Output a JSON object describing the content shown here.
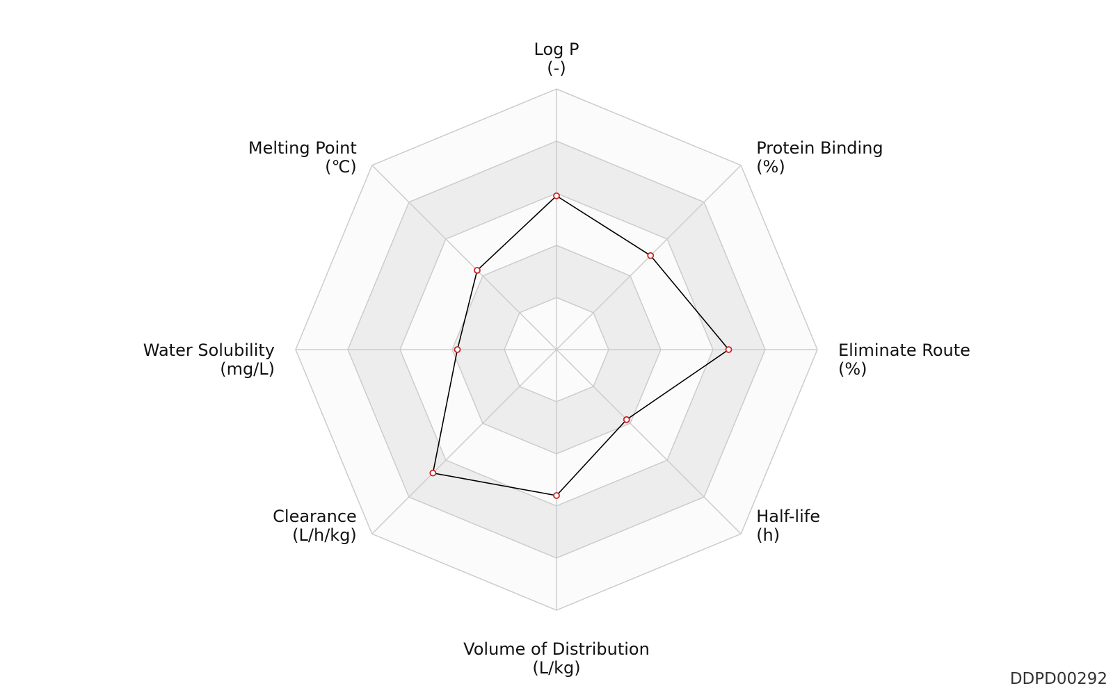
{
  "chart_data": {
    "type": "radar",
    "axes": [
      {
        "name": "Log P",
        "unit": "(-)"
      },
      {
        "name": "Protein Binding",
        "unit": "(%)"
      },
      {
        "name": "Eliminate Route",
        "unit": "(%)"
      },
      {
        "name": "Half-life",
        "unit": "(h)"
      },
      {
        "name": "Volume of Distribution",
        "unit": "(L/kg)"
      },
      {
        "name": "Clearance",
        "unit": "(L/h/kg)"
      },
      {
        "name": "Water Solubility",
        "unit": "(mg/L)"
      },
      {
        "name": "Melting Point",
        "unit": "(℃)"
      }
    ],
    "levels": [
      0.2,
      0.4,
      0.6,
      0.8,
      1.0
    ],
    "range": [
      0,
      1
    ],
    "series": [
      {
        "values": [
          0.59,
          0.51,
          0.66,
          0.38,
          0.56,
          0.67,
          0.38,
          0.43
        ]
      }
    ],
    "colors": {
      "band_light": "#fbfbfb",
      "band_dark": "#ededed",
      "grid": "#cccccc",
      "line": "#000000",
      "marker_stroke": "#cc2222",
      "marker_fill": "#ffffff"
    },
    "grid": true
  },
  "footer": {
    "id_label": "DDPD00292"
  }
}
